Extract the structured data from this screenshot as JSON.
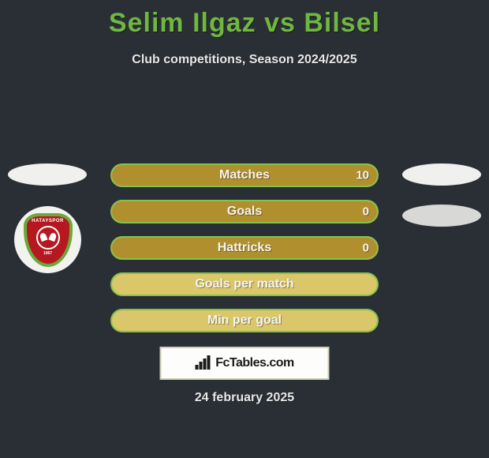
{
  "title": "Selim Ilgaz vs Bilsel",
  "subtitle": "Club competitions, Season 2024/2025",
  "date_text": "24 february 2025",
  "fctables_label": "FcTables.com",
  "badge": {
    "name": "HATAYSPOR",
    "year": "1967",
    "shield_color": "#b51821",
    "border_color": "#6aa93a"
  },
  "colors": {
    "background": "#2a2f36",
    "title_color": "#6fb83f",
    "bar_border": "#86c24a",
    "bar_bg": "#d9c76a",
    "left_fill": "#7fbf47",
    "right_fill": "#b08f2e",
    "text_light": "#f5f5f3",
    "oval_bg": "#f0f0ee"
  },
  "bars": [
    {
      "label": "Matches",
      "left_val": "",
      "right_val": "10",
      "left_pct": 0,
      "right_pct": 100
    },
    {
      "label": "Goals",
      "left_val": "",
      "right_val": "0",
      "left_pct": 0,
      "right_pct": 100
    },
    {
      "label": "Hattricks",
      "left_val": "",
      "right_val": "0",
      "left_pct": 0,
      "right_pct": 100
    },
    {
      "label": "Goals per match",
      "left_val": "",
      "right_val": "",
      "left_pct": 0,
      "right_pct": 0
    },
    {
      "label": "Min per goal",
      "left_val": "",
      "right_val": "",
      "left_pct": 0,
      "right_pct": 0
    }
  ]
}
